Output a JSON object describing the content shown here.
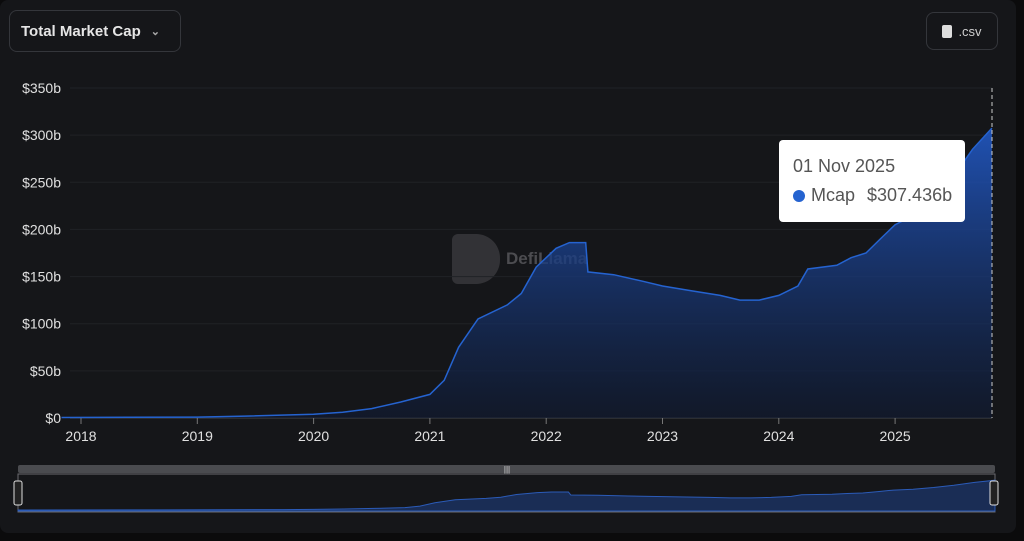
{
  "header": {
    "metric_select": "Total Market Cap",
    "csv_label": ".csv"
  },
  "watermark": "DefiLlama",
  "tooltip": {
    "date": "01 Nov 2025",
    "series": "Mcap",
    "value": "$307.436b",
    "color": "#2563d0"
  },
  "chart_data": {
    "type": "area",
    "ylim": [
      0,
      350
    ],
    "yticks": [
      "$0",
      "$50b",
      "$100b",
      "$150b",
      "$200b",
      "$250b",
      "$300b",
      "$350b"
    ],
    "xticks": [
      "2018",
      "2019",
      "2020",
      "2021",
      "2022",
      "2023",
      "2024",
      "2025"
    ],
    "grid": true,
    "color": "#2563d0",
    "series": [
      {
        "name": "Mcap",
        "points": [
          [
            "2017-11-01",
            0.5
          ],
          [
            "2019-01-01",
            1
          ],
          [
            "2019-06-01",
            2
          ],
          [
            "2020-01-01",
            4
          ],
          [
            "2020-04-01",
            6
          ],
          [
            "2020-07-01",
            10
          ],
          [
            "2020-10-01",
            17
          ],
          [
            "2021-01-01",
            25
          ],
          [
            "2021-02-15",
            40
          ],
          [
            "2021-04-01",
            75
          ],
          [
            "2021-06-01",
            105
          ],
          [
            "2021-09-01",
            120
          ],
          [
            "2021-10-15",
            132
          ],
          [
            "2021-12-01",
            160
          ],
          [
            "2022-02-01",
            180
          ],
          [
            "2022-03-15",
            186
          ],
          [
            "2022-05-05",
            186
          ],
          [
            "2022-05-12",
            155
          ],
          [
            "2022-08-01",
            152
          ],
          [
            "2022-11-01",
            145
          ],
          [
            "2023-01-01",
            140
          ],
          [
            "2023-04-01",
            135
          ],
          [
            "2023-07-01",
            130
          ],
          [
            "2023-09-01",
            125
          ],
          [
            "2023-11-01",
            125
          ],
          [
            "2024-01-01",
            130
          ],
          [
            "2024-03-01",
            140
          ],
          [
            "2024-04-01",
            158
          ],
          [
            "2024-07-01",
            162
          ],
          [
            "2024-08-15",
            170
          ],
          [
            "2024-10-01",
            175
          ],
          [
            "2024-11-15",
            190
          ],
          [
            "2025-01-01",
            205
          ],
          [
            "2025-03-01",
            215
          ],
          [
            "2025-05-01",
            232
          ],
          [
            "2025-07-01",
            255
          ],
          [
            "2025-09-01",
            285
          ],
          [
            "2025-11-01",
            307.436
          ]
        ]
      }
    ]
  }
}
